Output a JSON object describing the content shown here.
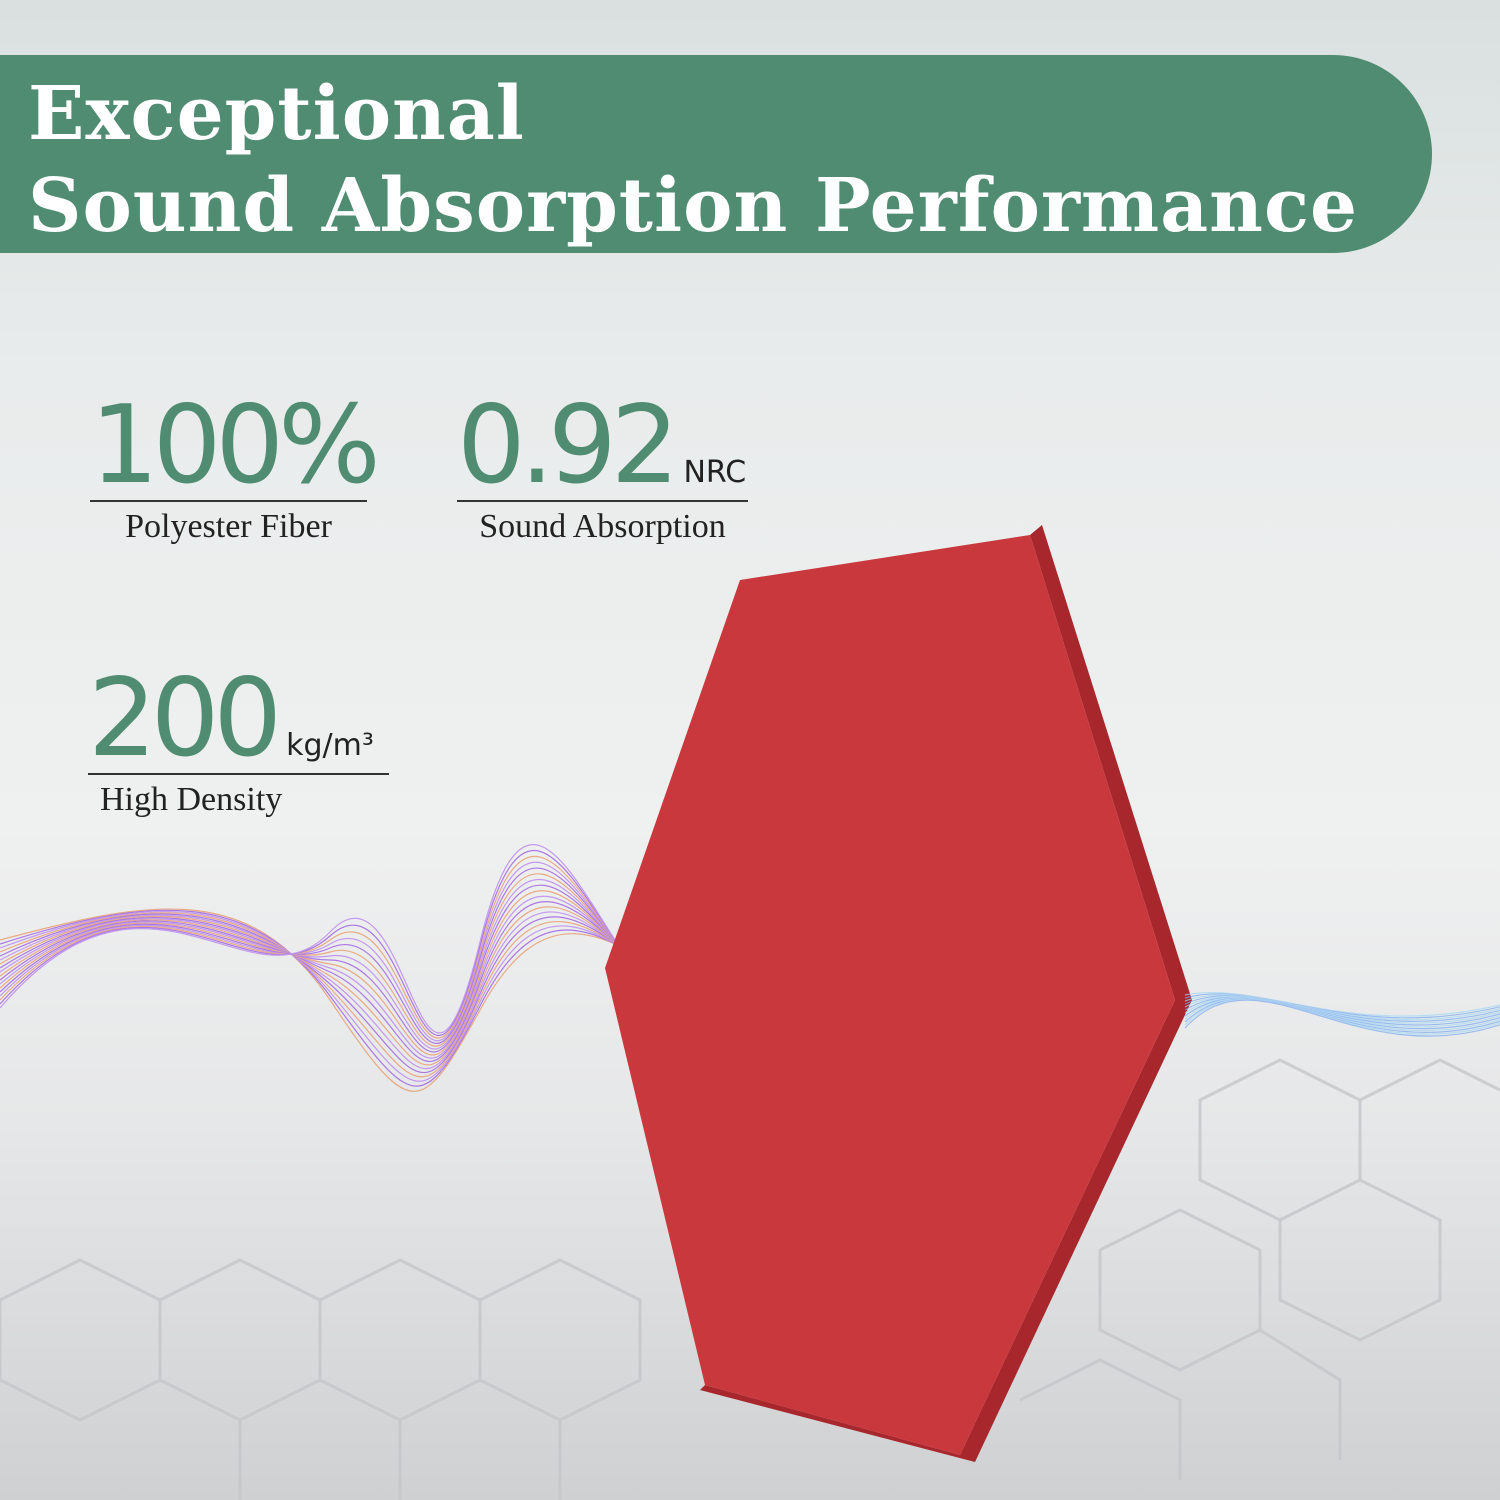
{
  "banner": {
    "line1": "Exceptional",
    "line2": "Sound Absorption Performance"
  },
  "stats": [
    {
      "value": "100%",
      "unit": "",
      "label": "Polyester Fiber"
    },
    {
      "value": "0.92",
      "unit": "NRC",
      "label": "Sound Absorption"
    },
    {
      "value": "200",
      "unit": "kg/m³",
      "label": "High Density"
    }
  ],
  "colors": {
    "brand_green": "#4f8c72",
    "panel_red": "#c9383d"
  },
  "product": "red hexagon acoustic panel"
}
